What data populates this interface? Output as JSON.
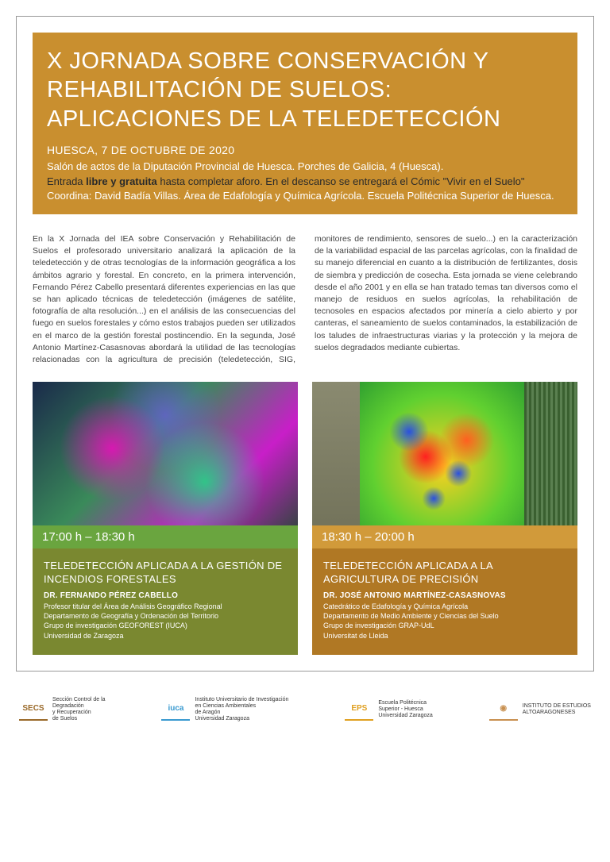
{
  "header": {
    "bg_color": "#c98f2f",
    "title": "X JORNADA SOBRE CONSERVACIÓN Y REHABILITACIÓN DE SUELOS: APLICACIONES DE LA TELEDETECCIÓN",
    "date_line": "HUESCA, 7 DE OCTUBRE DE 2020",
    "venue": "Salón de actos de la Diputación Provincial de Huesca. Porches de Galicia, 4 (Huesca).",
    "entry_pre": "Entrada ",
    "entry_emph": "libre y gratuita",
    "entry_post": " hasta completar aforo. En el descanso se entregará el Cómic \"Vivir en el Suelo\"",
    "coord": "Coordina: David Badía Villas. Área de Edafología y Química Agrícola. Escuela Politécnica Superior de Huesca."
  },
  "body": "En la X Jornada del IEA sobre Conservación y Rehabilitación de Suelos el profesorado universitario analizará la aplicación de la teledetección y de otras tecnologías de la información geográfica a los ámbitos agrario y forestal. En concreto, en la primera intervención, Fernando Pérez Cabello presentará diferentes experiencias en las que se han aplicado técnicas de teledetección (imágenes de satélite, fotografía de alta resolución...) en el análisis de las consecuencias del fuego en suelos forestales y cómo estos trabajos pueden ser utilizados en el marco de la gestión forestal postincendio. En la segunda, José Antonio Martínez-Casasnovas abordará la utilidad de las tecnologías relacionadas con la agricultura de precisión (teledetección, SIG, monitores de rendimiento, sensores de suelo...) en la caracterización de la variabilidad espacial de las parcelas agrícolas, con la finalidad de su manejo diferencial en cuanto a la distribución de fertilizantes, dosis de siembra y predicción de cosecha. Esta jornada se viene celebrando desde el año 2001 y en ella se han tratado temas tan diversos como el manejo de residuos en suelos agrícolas, la rehabilitación de tecnosoles en espacios afectados por minería a cielo abierto y por canteras, el saneamiento de suelos contaminados, la estabilización de los taludes de infraestructuras viarias y la protección y la mejora de suelos degradados mediante cubiertas.",
  "sessions": [
    {
      "time": "17:00 h – 18:30 h",
      "timebar_color": "#6aa53f",
      "info_color": "#7a8830",
      "title": "TELEDETECCIÓN APLICADA A LA GESTIÓN DE INCENDIOS FORESTALES",
      "speaker": "DR. FERNANDO PÉREZ CABELLO",
      "details": "Profesor titular del Área de Análisis Geográfico Regional\nDepartamento de Geografía y Ordenación del Territorio\nGrupo de investigación GEOFOREST (IUCA)\nUniversidad de Zaragoza"
    },
    {
      "time": "18:30 h – 20:00 h",
      "timebar_color": "#d19a3a",
      "info_color": "#b07824",
      "title": "TELEDETECCIÓN APLICADA A LA AGRICULTURA DE PRECISIÓN",
      "speaker": "DR. JOSÉ ANTONIO MARTÍNEZ-CASASNOVAS",
      "details": "Catedrático de Edafología y Química Agrícola\nDepartamento de Medio Ambiente y Ciencias del Suelo\nGrupo de investigación GRAP-UdL\nUniversitat de Lleida"
    }
  ],
  "logos": [
    {
      "mark": "SECS",
      "mark_color": "#9a6a2a",
      "text": "Sección Control de la\nDegradación\ny Recuperación\nde Suelos"
    },
    {
      "mark": "iuca",
      "mark_color": "#3a9ad0",
      "text": "Instituto Universitario de Investigación\nen Ciencias Ambientales\nde Aragón\nUniversidad Zaragoza"
    },
    {
      "mark": "EPS",
      "mark_color": "#e0a020",
      "text": "Escuela Politécnica\nSuperior - Huesca\nUniversidad Zaragoza"
    },
    {
      "mark": "◉",
      "mark_color": "#c89050",
      "text": "INSTITUTO DE ESTUDIOS\nALTOARAGONESES"
    }
  ]
}
